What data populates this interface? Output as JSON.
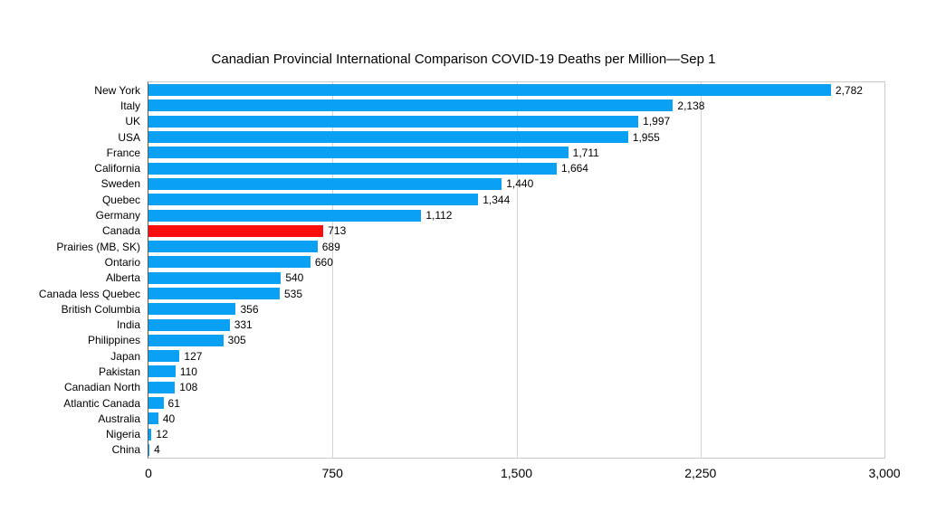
{
  "chart_data": {
    "type": "bar",
    "orientation": "horizontal",
    "title": "Canadian Provincial International Comparison COVID-19 Deaths per Million—Sep 1",
    "categories": [
      "New York",
      "Italy",
      "UK",
      "USA",
      "France",
      "California",
      "Sweden",
      "Quebec",
      "Germany",
      "Canada",
      "Prairies (MB, SK)",
      "Ontario",
      "Alberta",
      "Canada less Quebec",
      "British Columbia",
      "India",
      "Philippines",
      "Japan",
      "Pakistan",
      "Canadian North",
      "Atlantic Canada",
      "Australia",
      "Nigeria",
      "China"
    ],
    "values": [
      2782,
      2138,
      1997,
      1955,
      1711,
      1664,
      1440,
      1344,
      1112,
      713,
      689,
      660,
      540,
      535,
      356,
      331,
      305,
      127,
      110,
      108,
      61,
      40,
      12,
      4
    ],
    "value_labels": [
      "2,782",
      "2,138",
      "1,997",
      "1,955",
      "1,711",
      "1,664",
      "1,440",
      "1,344",
      "1,112",
      "713",
      "689",
      "660",
      "540",
      "535",
      "356",
      "331",
      "305",
      "127",
      "110",
      "108",
      "61",
      "40",
      "12",
      "4"
    ],
    "highlight_category": "Canada",
    "bar_color": "#0aa1f4",
    "highlight_color": "#fa0d0d",
    "xlim": [
      0,
      3000
    ],
    "x_ticks": [
      "0",
      "750",
      "1,500",
      "2,250",
      "3,000"
    ],
    "x_tick_values": [
      0,
      750,
      1500,
      2250,
      3000
    ],
    "grid": "vertical",
    "xlabel": "",
    "ylabel": ""
  }
}
